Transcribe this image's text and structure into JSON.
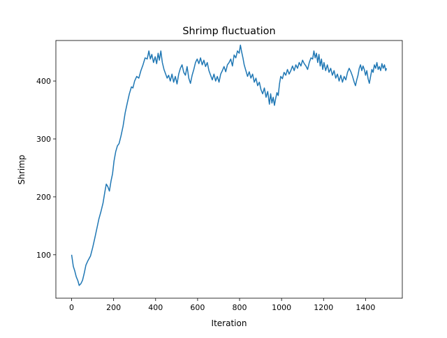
{
  "chart_data": {
    "type": "line",
    "title": "Shrimp fluctuation",
    "xlabel": "Iteration",
    "ylabel": "Shrimp",
    "xlim": [
      -75,
      1575
    ],
    "ylim": [
      25,
      470
    ],
    "xticks": [
      0,
      200,
      400,
      600,
      800,
      1000,
      1200,
      1400
    ],
    "yticks": [
      100,
      200,
      300,
      400
    ],
    "grid": false,
    "series": [
      {
        "color": "#1f77b4",
        "points": [
          [
            0,
            100
          ],
          [
            8,
            80
          ],
          [
            15,
            72
          ],
          [
            22,
            62
          ],
          [
            30,
            55
          ],
          [
            36,
            47
          ],
          [
            44,
            50
          ],
          [
            52,
            56
          ],
          [
            60,
            68
          ],
          [
            68,
            82
          ],
          [
            78,
            90
          ],
          [
            90,
            98
          ],
          [
            100,
            112
          ],
          [
            110,
            128
          ],
          [
            120,
            145
          ],
          [
            130,
            162
          ],
          [
            140,
            175
          ],
          [
            150,
            190
          ],
          [
            158,
            208
          ],
          [
            165,
            222
          ],
          [
            172,
            218
          ],
          [
            180,
            210
          ],
          [
            188,
            228
          ],
          [
            195,
            240
          ],
          [
            202,
            262
          ],
          [
            210,
            278
          ],
          [
            218,
            288
          ],
          [
            226,
            292
          ],
          [
            235,
            305
          ],
          [
            245,
            322
          ],
          [
            255,
            345
          ],
          [
            265,
            362
          ],
          [
            275,
            378
          ],
          [
            285,
            390
          ],
          [
            292,
            388
          ],
          [
            300,
            400
          ],
          [
            310,
            408
          ],
          [
            320,
            405
          ],
          [
            330,
            418
          ],
          [
            340,
            428
          ],
          [
            350,
            440
          ],
          [
            360,
            438
          ],
          [
            368,
            452
          ],
          [
            375,
            438
          ],
          [
            382,
            446
          ],
          [
            390,
            432
          ],
          [
            398,
            442
          ],
          [
            405,
            430
          ],
          [
            412,
            448
          ],
          [
            418,
            436
          ],
          [
            425,
            452
          ],
          [
            432,
            432
          ],
          [
            440,
            420
          ],
          [
            448,
            412
          ],
          [
            455,
            405
          ],
          [
            462,
            410
          ],
          [
            470,
            400
          ],
          [
            478,
            412
          ],
          [
            486,
            398
          ],
          [
            494,
            408
          ],
          [
            502,
            395
          ],
          [
            510,
            412
          ],
          [
            518,
            422
          ],
          [
            526,
            428
          ],
          [
            534,
            415
          ],
          [
            542,
            410
          ],
          [
            550,
            425
          ],
          [
            558,
            405
          ],
          [
            566,
            396
          ],
          [
            574,
            410
          ],
          [
            582,
            420
          ],
          [
            590,
            432
          ],
          [
            598,
            438
          ],
          [
            606,
            430
          ],
          [
            614,
            440
          ],
          [
            622,
            428
          ],
          [
            630,
            436
          ],
          [
            638,
            425
          ],
          [
            646,
            432
          ],
          [
            654,
            418
          ],
          [
            662,
            410
          ],
          [
            670,
            402
          ],
          [
            678,
            412
          ],
          [
            686,
            400
          ],
          [
            694,
            408
          ],
          [
            702,
            398
          ],
          [
            710,
            412
          ],
          [
            718,
            418
          ],
          [
            726,
            425
          ],
          [
            734,
            416
          ],
          [
            742,
            428
          ],
          [
            750,
            432
          ],
          [
            758,
            438
          ],
          [
            766,
            426
          ],
          [
            774,
            445
          ],
          [
            782,
            440
          ],
          [
            790,
            452
          ],
          [
            798,
            448
          ],
          [
            804,
            462
          ],
          [
            810,
            450
          ],
          [
            816,
            440
          ],
          [
            822,
            428
          ],
          [
            830,
            418
          ],
          [
            838,
            408
          ],
          [
            846,
            416
          ],
          [
            854,
            405
          ],
          [
            862,
            412
          ],
          [
            870,
            398
          ],
          [
            878,
            405
          ],
          [
            886,
            392
          ],
          [
            894,
            398
          ],
          [
            902,
            385
          ],
          [
            910,
            378
          ],
          [
            918,
            388
          ],
          [
            926,
            372
          ],
          [
            934,
            382
          ],
          [
            942,
            360
          ],
          [
            948,
            378
          ],
          [
            954,
            362
          ],
          [
            960,
            372
          ],
          [
            966,
            358
          ],
          [
            972,
            370
          ],
          [
            978,
            380
          ],
          [
            984,
            375
          ],
          [
            990,
            395
          ],
          [
            996,
            408
          ],
          [
            1004,
            404
          ],
          [
            1012,
            415
          ],
          [
            1020,
            410
          ],
          [
            1028,
            420
          ],
          [
            1036,
            412
          ],
          [
            1044,
            418
          ],
          [
            1052,
            426
          ],
          [
            1060,
            418
          ],
          [
            1068,
            428
          ],
          [
            1076,
            422
          ],
          [
            1084,
            432
          ],
          [
            1092,
            426
          ],
          [
            1100,
            436
          ],
          [
            1108,
            430
          ],
          [
            1116,
            426
          ],
          [
            1124,
            420
          ],
          [
            1132,
            432
          ],
          [
            1140,
            440
          ],
          [
            1148,
            438
          ],
          [
            1154,
            452
          ],
          [
            1160,
            440
          ],
          [
            1166,
            448
          ],
          [
            1172,
            432
          ],
          [
            1178,
            446
          ],
          [
            1184,
            426
          ],
          [
            1190,
            438
          ],
          [
            1196,
            420
          ],
          [
            1202,
            432
          ],
          [
            1210,
            418
          ],
          [
            1218,
            428
          ],
          [
            1226,
            415
          ],
          [
            1234,
            422
          ],
          [
            1242,
            410
          ],
          [
            1250,
            418
          ],
          [
            1258,
            405
          ],
          [
            1266,
            412
          ],
          [
            1274,
            400
          ],
          [
            1282,
            410
          ],
          [
            1290,
            398
          ],
          [
            1298,
            408
          ],
          [
            1306,
            402
          ],
          [
            1314,
            415
          ],
          [
            1322,
            422
          ],
          [
            1330,
            416
          ],
          [
            1338,
            408
          ],
          [
            1346,
            398
          ],
          [
            1352,
            392
          ],
          [
            1358,
            402
          ],
          [
            1364,
            410
          ],
          [
            1370,
            422
          ],
          [
            1376,
            428
          ],
          [
            1382,
            418
          ],
          [
            1388,
            426
          ],
          [
            1394,
            420
          ],
          [
            1400,
            410
          ],
          [
            1406,
            418
          ],
          [
            1412,
            404
          ],
          [
            1418,
            396
          ],
          [
            1424,
            408
          ],
          [
            1430,
            420
          ],
          [
            1436,
            415
          ],
          [
            1442,
            428
          ],
          [
            1448,
            422
          ],
          [
            1454,
            432
          ],
          [
            1460,
            420
          ],
          [
            1466,
            425
          ],
          [
            1472,
            418
          ],
          [
            1478,
            430
          ],
          [
            1484,
            422
          ],
          [
            1490,
            428
          ],
          [
            1496,
            418
          ],
          [
            1500,
            422
          ]
        ]
      }
    ]
  }
}
